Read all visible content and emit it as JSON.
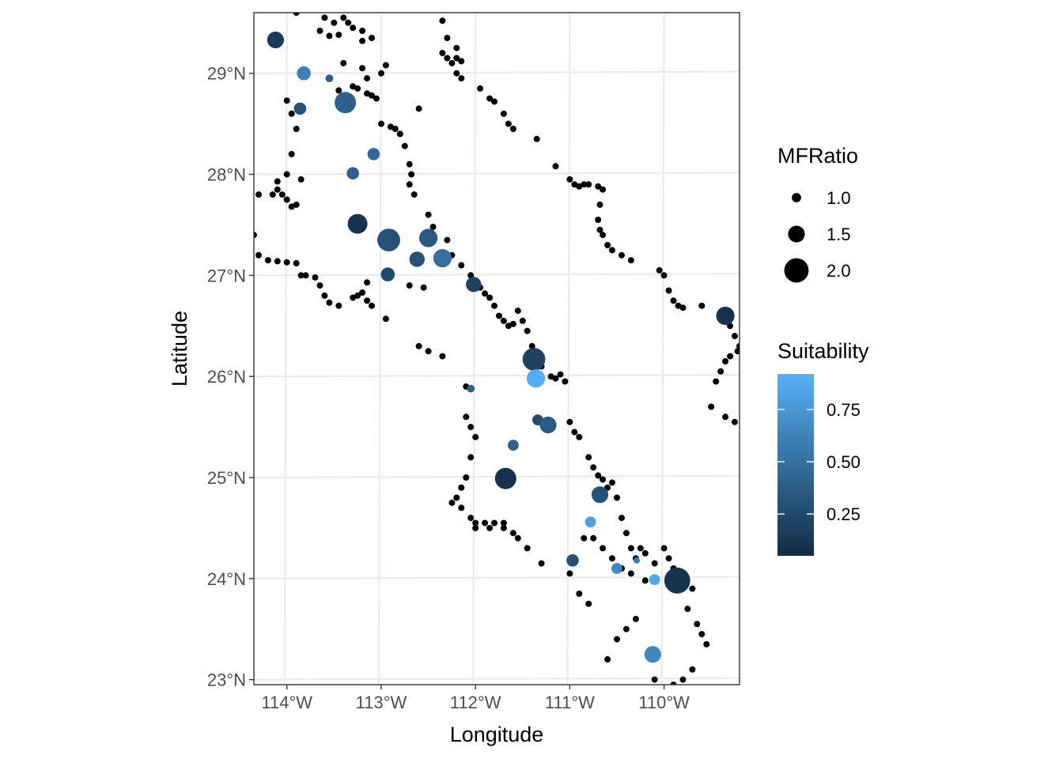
{
  "chart_data": {
    "type": "scatter",
    "xlabel": "Longitude",
    "ylabel": "Latitude",
    "xlim": [
      -114.35,
      -109.2
    ],
    "ylim": [
      22.95,
      29.6
    ],
    "x_ticks": [
      {
        "value": -114,
        "label": "114°W"
      },
      {
        "value": -113,
        "label": "113°W"
      },
      {
        "value": -112,
        "label": "112°W"
      },
      {
        "value": -111,
        "label": "111°W"
      },
      {
        "value": -110,
        "label": "110°W"
      }
    ],
    "y_ticks": [
      {
        "value": 23,
        "label": "23°N"
      },
      {
        "value": 24,
        "label": "24°N"
      },
      {
        "value": 25,
        "label": "25°N"
      },
      {
        "value": 26,
        "label": "26°N"
      },
      {
        "value": 27,
        "label": "27°N"
      },
      {
        "value": 28,
        "label": "28°N"
      },
      {
        "value": 29,
        "label": "29°N"
      }
    ],
    "grid": true,
    "legend_size": {
      "title": "MFRatio",
      "entries": [
        {
          "value": 1.0,
          "label": "1.0"
        },
        {
          "value": 1.5,
          "label": "1.5"
        },
        {
          "value": 2.0,
          "label": "2.0"
        }
      ]
    },
    "legend_color": {
      "title": "Suitability",
      "range": [
        0.05,
        0.92
      ],
      "low_color": "#132B43",
      "high_color": "#56B1F7",
      "ticks": [
        {
          "value": 0.25,
          "label": "0.25"
        },
        {
          "value": 0.5,
          "label": "0.50"
        },
        {
          "value": 0.75,
          "label": "0.75"
        }
      ]
    },
    "background_points_color": "#000000",
    "background_points": [
      [
        -113.9,
        29.6
      ],
      [
        -113.6,
        29.55
      ],
      [
        -113.5,
        29.5
      ],
      [
        -113.4,
        29.55
      ],
      [
        -113.35,
        29.5
      ],
      [
        -113.3,
        29.45
      ],
      [
        -113.2,
        29.42
      ],
      [
        -113.65,
        29.42
      ],
      [
        -113.55,
        29.37
      ],
      [
        -113.45,
        29.38
      ],
      [
        -113.1,
        29.35
      ],
      [
        -113.2,
        29.32
      ],
      [
        -113.4,
        29.1
      ],
      [
        -113.2,
        29.05
      ],
      [
        -113.0,
        29.0
      ],
      [
        -113.15,
        28.95
      ],
      [
        -113.3,
        28.87
      ],
      [
        -113.25,
        28.85
      ],
      [
        -113.15,
        28.8
      ],
      [
        -113.1,
        28.78
      ],
      [
        -113.05,
        28.75
      ],
      [
        -114.0,
        28.73
      ],
      [
        -113.95,
        28.6
      ],
      [
        -113.45,
        28.83
      ],
      [
        -113.0,
        28.5
      ],
      [
        -112.9,
        28.47
      ],
      [
        -112.85,
        28.45
      ],
      [
        -112.8,
        28.4
      ],
      [
        -112.75,
        28.28
      ],
      [
        -112.7,
        28.1
      ],
      [
        -112.68,
        28.0
      ],
      [
        -112.7,
        27.9
      ],
      [
        -112.65,
        27.8
      ],
      [
        -113.9,
        28.45
      ],
      [
        -113.95,
        28.2
      ],
      [
        -114.0,
        28.0
      ],
      [
        -113.85,
        27.95
      ],
      [
        -114.1,
        27.93
      ],
      [
        -114.1,
        27.85
      ],
      [
        -114.15,
        27.8
      ],
      [
        -114.3,
        27.8
      ],
      [
        -114.05,
        27.8
      ],
      [
        -114.0,
        27.75
      ],
      [
        -113.95,
        27.68
      ],
      [
        -113.9,
        27.7
      ],
      [
        -114.35,
        27.4
      ],
      [
        -114.3,
        27.2
      ],
      [
        -114.2,
        27.15
      ],
      [
        -114.1,
        27.14
      ],
      [
        -114.0,
        27.13
      ],
      [
        -113.9,
        27.12
      ],
      [
        -113.85,
        27.0
      ],
      [
        -113.8,
        27.0
      ],
      [
        -113.7,
        26.98
      ],
      [
        -113.65,
        26.9
      ],
      [
        -113.6,
        26.8
      ],
      [
        -113.55,
        26.73
      ],
      [
        -113.45,
        26.7
      ],
      [
        -113.3,
        26.78
      ],
      [
        -113.25,
        26.8
      ],
      [
        -113.2,
        26.83
      ],
      [
        -113.15,
        26.93
      ],
      [
        -113.15,
        26.75
      ],
      [
        -113.1,
        26.7
      ],
      [
        -112.95,
        26.57
      ],
      [
        -112.7,
        26.9
      ],
      [
        -112.55,
        26.88
      ],
      [
        -112.95,
        29.08
      ],
      [
        -112.6,
        28.65
      ],
      [
        -112.8,
        28.4
      ],
      [
        -112.35,
        29.52
      ],
      [
        -112.3,
        29.35
      ],
      [
        -112.35,
        29.2
      ],
      [
        -112.3,
        29.15
      ],
      [
        -112.2,
        29.25
      ],
      [
        -112.2,
        29.15
      ],
      [
        -112.25,
        29.1
      ],
      [
        -112.15,
        29.12
      ],
      [
        -112.2,
        29.0
      ],
      [
        -112.15,
        28.95
      ],
      [
        -111.95,
        28.85
      ],
      [
        -111.85,
        28.75
      ],
      [
        -111.8,
        28.72
      ],
      [
        -111.7,
        28.6
      ],
      [
        -111.65,
        28.5
      ],
      [
        -111.6,
        28.45
      ],
      [
        -111.35,
        28.35
      ],
      [
        -111.15,
        28.08
      ],
      [
        -111.0,
        27.95
      ],
      [
        -110.95,
        27.9
      ],
      [
        -110.9,
        27.88
      ],
      [
        -110.85,
        27.9
      ],
      [
        -110.8,
        27.9
      ],
      [
        -110.7,
        27.88
      ],
      [
        -110.65,
        27.85
      ],
      [
        -110.68,
        27.7
      ],
      [
        -110.7,
        27.55
      ],
      [
        -110.68,
        27.45
      ],
      [
        -110.65,
        27.4
      ],
      [
        -110.6,
        27.3
      ],
      [
        -110.55,
        27.25
      ],
      [
        -110.45,
        27.2
      ],
      [
        -110.35,
        27.15
      ],
      [
        -110.05,
        27.05
      ],
      [
        -110.0,
        27.0
      ],
      [
        -109.95,
        26.85
      ],
      [
        -109.9,
        26.75
      ],
      [
        -109.85,
        26.7
      ],
      [
        -109.8,
        26.68
      ],
      [
        -109.6,
        26.7
      ],
      [
        -109.3,
        26.5
      ],
      [
        -109.25,
        26.4
      ],
      [
        -109.2,
        26.3
      ],
      [
        -109.22,
        26.25
      ],
      [
        -109.3,
        26.2
      ],
      [
        -109.35,
        26.15
      ],
      [
        -109.4,
        26.05
      ],
      [
        -109.45,
        25.95
      ],
      [
        -109.5,
        25.7
      ],
      [
        -109.35,
        25.6
      ],
      [
        -109.25,
        25.55
      ],
      [
        -109.15,
        25.58
      ],
      [
        -112.5,
        27.6
      ],
      [
        -112.45,
        27.48
      ],
      [
        -112.3,
        27.35
      ],
      [
        -112.25,
        27.2
      ],
      [
        -112.15,
        27.1
      ],
      [
        -112.05,
        27.0
      ],
      [
        -111.95,
        26.88
      ],
      [
        -111.9,
        26.82
      ],
      [
        -111.85,
        26.78
      ],
      [
        -111.8,
        26.7
      ],
      [
        -111.75,
        26.6
      ],
      [
        -111.7,
        26.55
      ],
      [
        -111.65,
        26.5
      ],
      [
        -111.6,
        26.52
      ],
      [
        -111.55,
        26.65
      ],
      [
        -111.5,
        26.55
      ],
      [
        -111.45,
        26.45
      ],
      [
        -111.4,
        26.3
      ],
      [
        -111.3,
        26.1
      ],
      [
        -111.2,
        26.0
      ],
      [
        -111.15,
        25.98
      ],
      [
        -111.1,
        26.02
      ],
      [
        -111.05,
        25.95
      ],
      [
        -111.0,
        25.55
      ],
      [
        -110.95,
        25.45
      ],
      [
        -110.9,
        25.4
      ],
      [
        -110.8,
        25.2
      ],
      [
        -110.75,
        25.1
      ],
      [
        -110.7,
        25.02
      ],
      [
        -110.65,
        24.98
      ],
      [
        -110.6,
        24.9
      ],
      [
        -110.55,
        24.95
      ],
      [
        -110.5,
        24.8
      ],
      [
        -110.45,
        24.6
      ],
      [
        -110.4,
        24.45
      ],
      [
        -110.35,
        24.3
      ],
      [
        -110.3,
        24.2
      ],
      [
        -110.25,
        24.3
      ],
      [
        -110.2,
        24.25
      ],
      [
        -110.1,
        24.15
      ],
      [
        -110.0,
        24.3
      ],
      [
        -109.95,
        24.2
      ],
      [
        -109.9,
        24.1
      ],
      [
        -109.85,
        24.05
      ],
      [
        -109.7,
        23.9
      ],
      [
        -109.75,
        23.7
      ],
      [
        -109.65,
        23.55
      ],
      [
        -109.6,
        23.45
      ],
      [
        -109.55,
        23.35
      ],
      [
        -109.7,
        23.1
      ],
      [
        -109.8,
        23.0
      ],
      [
        -109.9,
        22.95
      ],
      [
        -110.1,
        23.0
      ],
      [
        -110.3,
        23.6
      ],
      [
        -110.4,
        23.5
      ],
      [
        -110.5,
        23.4
      ],
      [
        -110.6,
        23.2
      ],
      [
        -110.8,
        23.75
      ],
      [
        -110.9,
        23.85
      ],
      [
        -111.0,
        24.05
      ],
      [
        -110.85,
        24.4
      ],
      [
        -110.75,
        24.4
      ],
      [
        -110.65,
        24.3
      ],
      [
        -110.55,
        24.2
      ],
      [
        -110.45,
        24.1
      ],
      [
        -112.6,
        26.3
      ],
      [
        -112.5,
        26.25
      ],
      [
        -112.35,
        26.2
      ],
      [
        -112.1,
        25.9
      ],
      [
        -112.1,
        25.6
      ],
      [
        -112.05,
        25.5
      ],
      [
        -112.0,
        25.4
      ],
      [
        -112.05,
        25.2
      ],
      [
        -112.1,
        25.0
      ],
      [
        -112.15,
        24.9
      ],
      [
        -112.2,
        24.8
      ],
      [
        -112.25,
        24.75
      ],
      [
        -112.15,
        24.7
      ],
      [
        -112.05,
        24.6
      ],
      [
        -112.0,
        24.55
      ],
      [
        -111.9,
        24.55
      ],
      [
        -111.8,
        24.55
      ],
      [
        -111.7,
        24.5
      ],
      [
        -111.6,
        24.45
      ],
      [
        -111.55,
        24.4
      ],
      [
        -111.45,
        24.3
      ],
      [
        -111.3,
        24.15
      ],
      [
        -111.85,
        24.5
      ],
      [
        -112.0,
        24.5
      ],
      [
        -111.7,
        24.55
      ],
      [
        -110.35,
        24.05
      ],
      [
        -110.2,
        23.98
      ]
    ],
    "colored_points": [
      {
        "lon": -114.12,
        "lat": 29.33,
        "mfratio": 1.5,
        "suitability": 0.15
      },
      {
        "lon": -113.82,
        "lat": 29.0,
        "mfratio": 1.3,
        "suitability": 0.6
      },
      {
        "lon": -113.55,
        "lat": 28.95,
        "mfratio": 0.9,
        "suitability": 0.4
      },
      {
        "lon": -113.86,
        "lat": 28.65,
        "mfratio": 1.2,
        "suitability": 0.3
      },
      {
        "lon": -113.38,
        "lat": 28.71,
        "mfratio": 1.8,
        "suitability": 0.4
      },
      {
        "lon": -113.08,
        "lat": 28.2,
        "mfratio": 1.2,
        "suitability": 0.45
      },
      {
        "lon": -113.3,
        "lat": 28.01,
        "mfratio": 1.2,
        "suitability": 0.4
      },
      {
        "lon": -113.25,
        "lat": 27.51,
        "mfratio": 1.7,
        "suitability": 0.1
      },
      {
        "lon": -112.92,
        "lat": 27.35,
        "mfratio": 1.9,
        "suitability": 0.3
      },
      {
        "lon": -112.5,
        "lat": 27.37,
        "mfratio": 1.6,
        "suitability": 0.35
      },
      {
        "lon": -112.62,
        "lat": 27.16,
        "mfratio": 1.4,
        "suitability": 0.3
      },
      {
        "lon": -112.35,
        "lat": 27.17,
        "mfratio": 1.6,
        "suitability": 0.5
      },
      {
        "lon": -112.93,
        "lat": 27.01,
        "mfratio": 1.3,
        "suitability": 0.25
      },
      {
        "lon": -112.02,
        "lat": 26.91,
        "mfratio": 1.4,
        "suitability": 0.2
      },
      {
        "lon": -111.38,
        "lat": 26.17,
        "mfratio": 1.9,
        "suitability": 0.2
      },
      {
        "lon": -111.36,
        "lat": 25.98,
        "mfratio": 1.6,
        "suitability": 0.9
      },
      {
        "lon": -112.05,
        "lat": 25.88,
        "mfratio": 0.9,
        "suitability": 0.4
      },
      {
        "lon": -111.34,
        "lat": 25.57,
        "mfratio": 1.1,
        "suitability": 0.25
      },
      {
        "lon": -111.23,
        "lat": 25.52,
        "mfratio": 1.5,
        "suitability": 0.35
      },
      {
        "lon": -111.6,
        "lat": 25.32,
        "mfratio": 1.1,
        "suitability": 0.4
      },
      {
        "lon": -111.68,
        "lat": 24.99,
        "mfratio": 1.8,
        "suitability": 0.1
      },
      {
        "lon": -110.68,
        "lat": 24.83,
        "mfratio": 1.5,
        "suitability": 0.3
      },
      {
        "lon": -110.78,
        "lat": 24.56,
        "mfratio": 1.1,
        "suitability": 0.8
      },
      {
        "lon": -110.97,
        "lat": 24.18,
        "mfratio": 1.2,
        "suitability": 0.3
      },
      {
        "lon": -110.5,
        "lat": 24.1,
        "mfratio": 1.1,
        "suitability": 0.65
      },
      {
        "lon": -110.29,
        "lat": 24.18,
        "mfratio": 0.8,
        "suitability": 0.6
      },
      {
        "lon": -110.1,
        "lat": 23.99,
        "mfratio": 1.1,
        "suitability": 0.85
      },
      {
        "lon": -109.86,
        "lat": 23.98,
        "mfratio": 2.1,
        "suitability": 0.1
      },
      {
        "lon": -110.12,
        "lat": 23.25,
        "mfratio": 1.5,
        "suitability": 0.65
      },
      {
        "lon": -109.35,
        "lat": 26.6,
        "mfratio": 1.6,
        "suitability": 0.1
      }
    ]
  }
}
